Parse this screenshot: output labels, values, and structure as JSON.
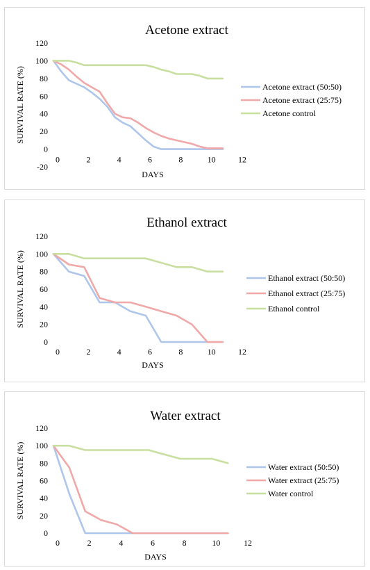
{
  "chart_data": [
    {
      "type": "line",
      "title": "Acetone extract",
      "xlabel": "DAYS",
      "ylabel": "SURVIVAL RATE (%)",
      "xlim": [
        0,
        12
      ],
      "ylim": [
        -20,
        120
      ],
      "xticks": [
        0,
        2,
        4,
        6,
        8,
        10,
        12
      ],
      "yticks": [
        -20,
        0,
        20,
        40,
        60,
        80,
        100,
        120
      ],
      "grid": false,
      "legend": "right",
      "x": [
        0,
        0.5,
        1,
        1.5,
        2,
        2.5,
        3,
        3.5,
        4,
        4.5,
        5,
        5.5,
        6,
        6.5,
        7,
        7.5,
        8,
        8.5,
        9,
        9.5,
        10,
        10.5,
        11
      ],
      "series": [
        {
          "name": "Acetone extract (50:50)",
          "color": "#aec6ea",
          "values": [
            100,
            88,
            78,
            74,
            70,
            64,
            57,
            48,
            36,
            30,
            26,
            18,
            10,
            3,
            0,
            0,
            0,
            0,
            0,
            0,
            0,
            0,
            0
          ]
        },
        {
          "name": "Acetone extract (25:75)",
          "color": "#f0a8a8",
          "values": [
            100,
            96,
            90,
            82,
            75,
            70,
            65,
            52,
            40,
            36,
            35,
            30,
            24,
            19,
            15,
            12,
            10,
            8,
            6,
            3,
            1,
            1,
            1
          ]
        },
        {
          "name": "Acetone control",
          "color": "#c8dfa0",
          "values": [
            100,
            100,
            100,
            98,
            95,
            95,
            95,
            95,
            95,
            95,
            95,
            95,
            95,
            93,
            90,
            88,
            85,
            85,
            85,
            83,
            80,
            80,
            80
          ]
        }
      ]
    },
    {
      "type": "line",
      "title": "Ethanol extract",
      "xlabel": "DAYS",
      "ylabel": "SURVIVAL RATE (%)",
      "xlim": [
        0,
        12
      ],
      "ylim": [
        0,
        120
      ],
      "xticks": [
        0,
        2,
        4,
        6,
        8,
        10,
        12
      ],
      "yticks": [
        0,
        20,
        40,
        60,
        80,
        100,
        120
      ],
      "grid": false,
      "legend": "right",
      "x": [
        0,
        1,
        2,
        3,
        4,
        5,
        6,
        7,
        8,
        9,
        10,
        11
      ],
      "series": [
        {
          "name": "Ethanol extract (50:50)",
          "color": "#aec6ea",
          "values": [
            100,
            80,
            75,
            45,
            45,
            35,
            30,
            0,
            0,
            0,
            0,
            0
          ]
        },
        {
          "name": "Ethanol extract (25:75)",
          "color": "#f0a8a8",
          "values": [
            100,
            88,
            85,
            50,
            45,
            45,
            40,
            35,
            30,
            20,
            0,
            0
          ]
        },
        {
          "name": "Ethanol control",
          "color": "#c8dfa0",
          "values": [
            100,
            100,
            95,
            95,
            95,
            95,
            95,
            90,
            85,
            85,
            80,
            80
          ]
        }
      ]
    },
    {
      "type": "line",
      "title": "Water extract",
      "xlabel": "DAYS",
      "ylabel": "SURVIVAL RATE (%)",
      "xlim": [
        0,
        12
      ],
      "ylim": [
        0,
        120
      ],
      "xticks": [
        0,
        2,
        4,
        6,
        8,
        10,
        12
      ],
      "yticks": [
        0,
        20,
        40,
        60,
        80,
        100,
        120
      ],
      "grid": false,
      "legend": "right",
      "x": [
        0,
        1,
        2,
        3,
        4,
        5,
        6,
        7,
        8,
        9,
        10,
        11
      ],
      "series": [
        {
          "name": "Water extract (50:50)",
          "color": "#aec6ea",
          "values": [
            100,
            45,
            0,
            0,
            0,
            0,
            0,
            0,
            0,
            0,
            0,
            0
          ]
        },
        {
          "name": "Water extract (25:75)",
          "color": "#f0a8a8",
          "values": [
            100,
            75,
            25,
            15,
            10,
            0,
            0,
            0,
            0,
            0,
            0,
            0
          ]
        },
        {
          "name": "Water control",
          "color": "#c8dfa0",
          "values": [
            100,
            100,
            95,
            95,
            95,
            95,
            95,
            90,
            85,
            85,
            85,
            80
          ]
        }
      ]
    }
  ]
}
